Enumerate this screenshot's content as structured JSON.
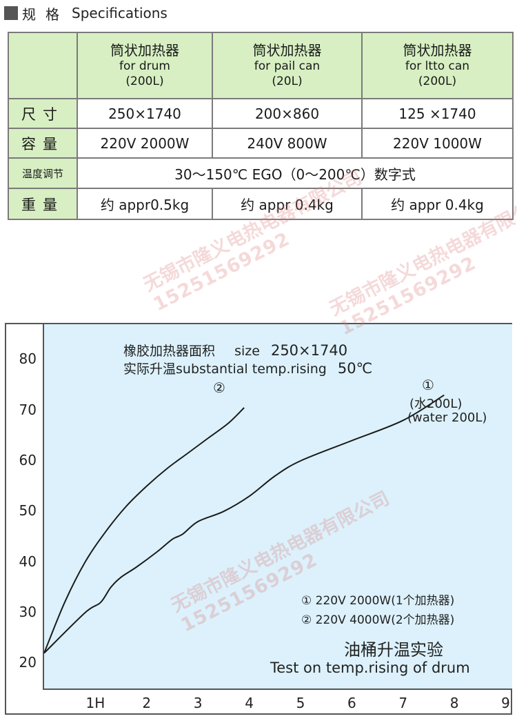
{
  "section": {
    "title_cn": "规格",
    "title_en": "Specifications"
  },
  "spec_table": {
    "columns": [
      {
        "cn": "筒状加热器",
        "en": "for drum",
        "capacity": "(200L)"
      },
      {
        "cn": "筒状加热器",
        "en": "for pail can",
        "capacity": "(20L)"
      },
      {
        "cn": "筒状加热器",
        "en": "for ltto can",
        "capacity": "(200L)"
      }
    ],
    "rows": {
      "size": {
        "label": "尺寸",
        "values": [
          "250×1740",
          "200×860",
          "125 ×1740"
        ]
      },
      "capacity": {
        "label": "容量",
        "values": [
          "220V 2000W",
          "240V 800W",
          "220V 1000W"
        ]
      },
      "temp_control": {
        "label": "温度调节",
        "value": "30～150℃ EGO（0～200℃）数字式"
      },
      "weight": {
        "label": "重量",
        "values": [
          "约 appr0.5kg",
          "约 appr 0.4kg",
          "约 appr 0.4kg"
        ]
      }
    }
  },
  "watermarks": [
    {
      "name": "无锡市隆义电热电器有限公司",
      "phone": "15251569292"
    }
  ],
  "chart_labels": {
    "area_line1_cn": "橡胶加热器面积",
    "area_line1_en": "size",
    "area_line1_value": "250×1740",
    "area_line2_cn": "实际升温",
    "area_line2_en": "substantial temp.rising",
    "area_line2_value": "50℃",
    "curve2_marker": "②",
    "curve1_marker": "①",
    "curve1_cn": "(水200L)",
    "curve1_en": "(water 200L)",
    "legend1": "① 220V 2000W(1个加热器)",
    "legend2": "② 220V 4000W(2个加热器)",
    "test_cn": "油桶升温实验",
    "test_en": "Test on temp.rising of drum"
  },
  "chart_data": {
    "type": "line",
    "title": "油桶升温实验",
    "subtitle": "Test on temp.rising of drum",
    "x_ticks": [
      "1H",
      "2",
      "3",
      "4",
      "5",
      "6",
      "7",
      "8",
      "9"
    ],
    "y_ticks": [
      "20",
      "30",
      "40",
      "50",
      "60",
      "70",
      "80"
    ],
    "xlim": [
      0,
      9.1
    ],
    "ylim": [
      15,
      87
    ],
    "grid": false,
    "series": [
      {
        "name": "① 220V 2000W(1个加热器)",
        "marker": "①",
        "x": [
          0,
          0.8,
          1.1,
          1.3,
          1.5,
          1.8,
          2.2,
          2.5,
          2.7,
          3.0,
          3.5,
          4.0,
          4.5,
          5.0,
          6.0,
          7.0,
          7.8
        ],
        "y": [
          22,
          30,
          32,
          35,
          37,
          39,
          42,
          44.5,
          45.5,
          48,
          50,
          53,
          57,
          60,
          64,
          68,
          73
        ]
      },
      {
        "name": "② 220V 4000W(2个加热器)",
        "marker": "②",
        "x": [
          0,
          0.4,
          0.8,
          1.2,
          1.6,
          2.0,
          2.4,
          2.8,
          3.2,
          3.6,
          3.9
        ],
        "y": [
          22,
          32,
          40,
          46,
          51,
          55,
          58.5,
          61.5,
          64.5,
          67.5,
          70.5
        ]
      }
    ]
  },
  "colors": {
    "table_header_bg": "#d7efc2",
    "chart_bg": "#dcf1fb",
    "line": "#1a1a1a",
    "watermark": "#dc7878"
  }
}
